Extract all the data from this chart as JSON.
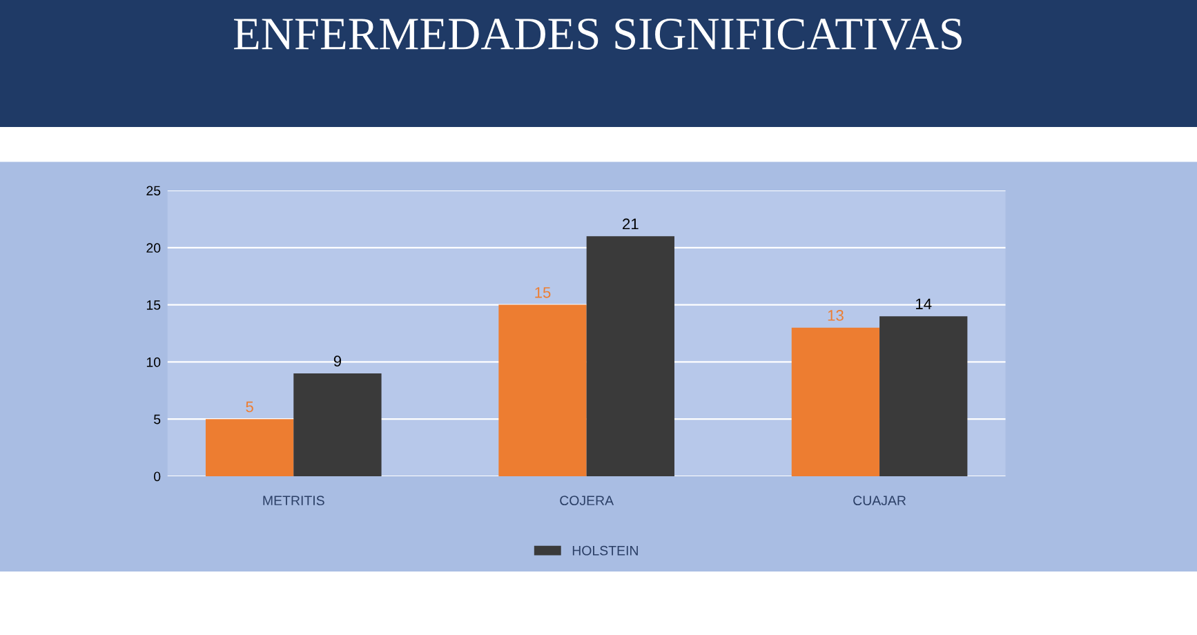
{
  "chart_data": {
    "type": "bar",
    "title": "ENFERMEDADES SIGNIFICATIVAS",
    "categories": [
      "METRITIS",
      "COJERA",
      "CUAJAR"
    ],
    "series": [
      {
        "color": "#ed7d31",
        "values": [
          5,
          15,
          13
        ]
      },
      {
        "name": "HOLSTEIN",
        "color": "#3a3a3a",
        "values": [
          9,
          21,
          14
        ]
      }
    ],
    "ylim": [
      0,
      25
    ],
    "yticks": [
      0,
      5,
      10,
      15,
      20,
      25
    ],
    "grid": "y",
    "legend": "bottom",
    "data_labels": true
  }
}
